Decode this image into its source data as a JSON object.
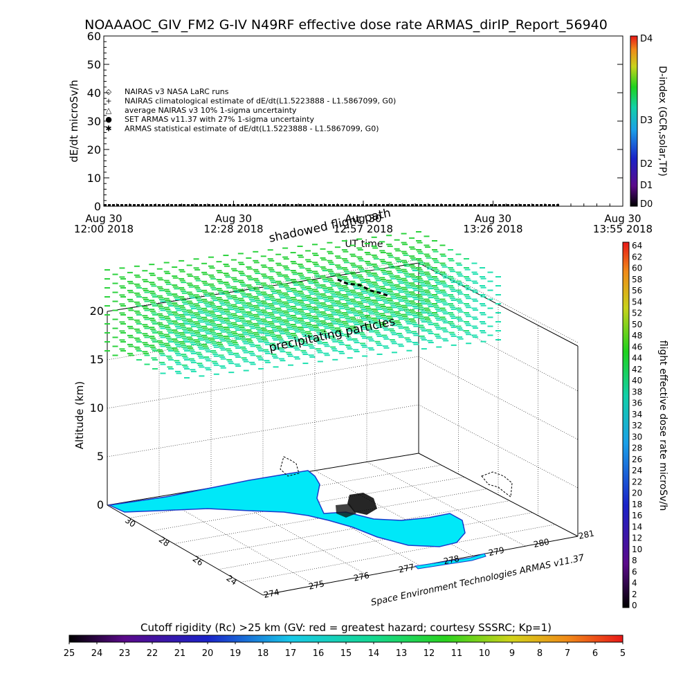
{
  "title": "NOAAAOC_GIV_FM2 G-IV    N49RF  effective dose rate ARMAS_dirIP_Report_56940",
  "chart_data": [
    {
      "type": "line",
      "ylabel": "dE/dt microSv/h",
      "xlabel": "UT time",
      "ylim": [
        0,
        60
      ],
      "yticks": [
        "0",
        "10",
        "20",
        "30",
        "40",
        "50",
        "60"
      ],
      "xticks": [
        {
          "date": "Aug 30",
          "time": "12:00 2018"
        },
        {
          "date": "Aug 30",
          "time": "12:28 2018"
        },
        {
          "date": "Aug 30",
          "time": "12:57 2018"
        },
        {
          "date": "Aug 30",
          "time": "13:26 2018"
        },
        {
          "date": "Aug 30",
          "time": "13:55 2018"
        }
      ],
      "legend": [
        {
          "symbol": "◇",
          "label": "NAIRAS v3 NASA LaRC runs"
        },
        {
          "symbol": "+",
          "label": "NAIRAS climatological estimate of dE/dt(L1.5223888 - L1.5867099, G0)"
        },
        {
          "symbol": "△",
          "label": "average NAIRAS v3 10% 1-sigma uncertainty"
        },
        {
          "symbol": "●",
          "label": "SET ARMAS v11.37 with 27% 1-sigma uncertainty",
          "color": "#1a3fd6"
        },
        {
          "symbol": "✱",
          "label": "ARMAS statistical estimate of dE/dt(L1.5223888 - L1.5867099, G0)"
        }
      ],
      "dindex_colorbar": {
        "label": "D-index (GCR,solar,TP)",
        "ticks": [
          "D0",
          "D1",
          "D2",
          "D3",
          "D4"
        ]
      }
    },
    {
      "type": "scatter",
      "annotations": [
        "shadowed flight path",
        "precipitating particles"
      ],
      "zlabel": "Altitude (km)",
      "zticks": [
        "0",
        "5",
        "10",
        "15",
        "20"
      ],
      "lat_ticks": [
        "30",
        "28",
        "26",
        "24"
      ],
      "lon_ticks": [
        "274",
        "275",
        "276",
        "277",
        "278",
        "279",
        "280",
        "281"
      ],
      "credit": "Space Environment Technologies ARMAS v11.37",
      "dose_colorbar": {
        "label": "flight effective dose rate microSv/h",
        "ticks": [
          "0",
          "2",
          "4",
          "6",
          "8",
          "10",
          "12",
          "14",
          "16",
          "18",
          "20",
          "22",
          "24",
          "26",
          "28",
          "30",
          "32",
          "34",
          "36",
          "38",
          "40",
          "42",
          "44",
          "46",
          "48",
          "50",
          "52",
          "54",
          "56",
          "58",
          "60",
          "62",
          "64"
        ]
      },
      "cutoff_colorbar": {
        "label": "Cutoff rigidity (Rc) >25 km (GV: red = greatest hazard; courtesy SSSRC; Kp=1)",
        "ticks": [
          "25",
          "24",
          "23",
          "22",
          "21",
          "20",
          "19",
          "18",
          "17",
          "16",
          "15",
          "14",
          "13",
          "12",
          "11",
          "10",
          "9",
          "8",
          "7",
          "6",
          "5"
        ]
      }
    }
  ]
}
